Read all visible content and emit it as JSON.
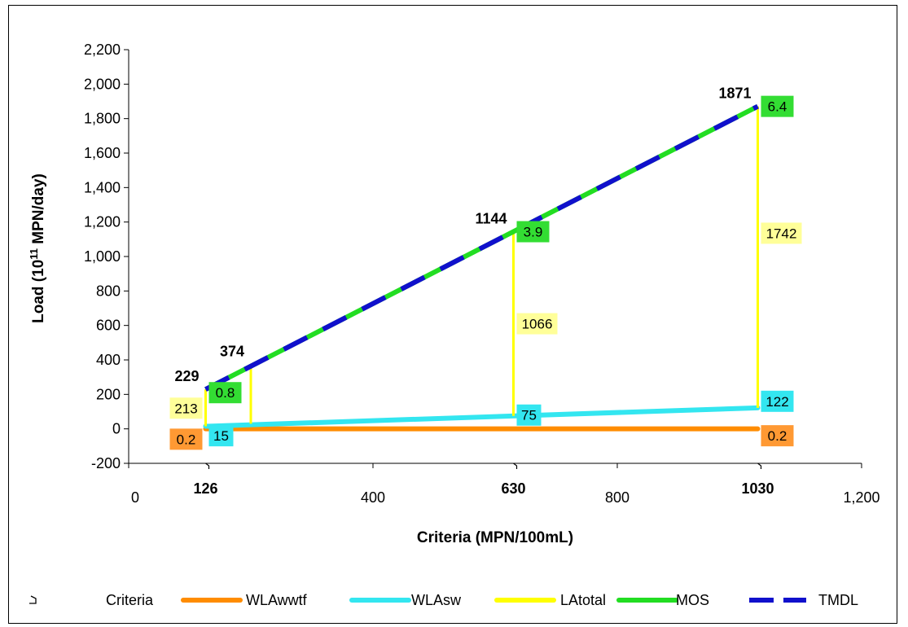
{
  "chart_data": {
    "type": "line",
    "xlabel": "Criteria (MPN/100mL)",
    "ylabel_main": "Load (10",
    "ylabel_sup": "11",
    "ylabel_tail": " MPN/day)",
    "xlim": [
      0,
      1200
    ],
    "ylim": [
      -200,
      2200
    ],
    "x_ticks": [
      "0",
      "400",
      "800",
      "1,200"
    ],
    "y_ticks": [
      "-200",
      "0",
      "200",
      "400",
      "600",
      "800",
      "1,000",
      "1,200",
      "1,400",
      "1,600",
      "1,800",
      "2,000",
      "2,200"
    ],
    "criteria_markers": [
      {
        "x": 126,
        "label": "126"
      },
      {
        "x": 630,
        "label": "630"
      },
      {
        "x": 1030,
        "label": "1030"
      }
    ],
    "series": [
      {
        "name": "WLAwwtf",
        "color": "#FF8C00",
        "x": [
          126,
          1030
        ],
        "y": [
          0.2,
          0.2
        ]
      },
      {
        "name": "WLAsw",
        "color": "#33E6F0",
        "x": [
          126,
          1030
        ],
        "y": [
          15,
          122
        ]
      },
      {
        "name": "MOS",
        "color": "#22DD22",
        "x": [
          126,
          1030
        ],
        "y": [
          229,
          1871
        ]
      },
      {
        "name": "TMDL",
        "color": "#1010CC",
        "x": [
          126,
          1030
        ],
        "y": [
          229,
          1871
        ]
      }
    ],
    "latotal_segments": [
      {
        "x": 126,
        "y0": 15,
        "y1": 229
      },
      {
        "x": 200,
        "y0": 30,
        "y1": 374
      },
      {
        "x": 630,
        "y0": 75,
        "y1": 1144
      },
      {
        "x": 1030,
        "y0": 122,
        "y1": 1871
      }
    ],
    "tmdl_labels": [
      {
        "x": 126,
        "y": 229,
        "text": "229"
      },
      {
        "x": 200,
        "y": 374,
        "text": "374"
      },
      {
        "x": 630,
        "y": 1144,
        "text": "1144"
      },
      {
        "x": 1030,
        "y": 1871,
        "text": "1871"
      }
    ],
    "boxed_labels": [
      {
        "series": "LAtotal",
        "x": 126,
        "y": 120,
        "text": "213",
        "bg": "#FFFF99",
        "side": "left"
      },
      {
        "series": "MOS",
        "x": 126,
        "y": 210,
        "text": "0.8",
        "bg": "#33DD33",
        "side": "right"
      },
      {
        "series": "WLAwwtf",
        "x": 126,
        "y": -60,
        "text": "0.2",
        "bg": "#FF9933",
        "side": "left"
      },
      {
        "series": "WLAsw",
        "x": 126,
        "y": -40,
        "text": "15",
        "bg": "#33E6F0",
        "side": "right"
      },
      {
        "series": "MOS",
        "x": 630,
        "y": 1144,
        "text": "3.9",
        "bg": "#33DD33",
        "side": "right"
      },
      {
        "series": "LAtotal",
        "x": 630,
        "y": 610,
        "text": "1066",
        "bg": "#FFFF99",
        "side": "right"
      },
      {
        "series": "WLAsw",
        "x": 630,
        "y": 80,
        "text": "75",
        "bg": "#33E6F0",
        "side": "right"
      },
      {
        "series": "MOS",
        "x": 1030,
        "y": 1871,
        "text": "6.4",
        "bg": "#33DD33",
        "side": "right"
      },
      {
        "series": "LAtotal",
        "x": 1030,
        "y": 1135,
        "text": "1742",
        "bg": "#FFFF99",
        "side": "right"
      },
      {
        "series": "WLAsw",
        "x": 1030,
        "y": 160,
        "text": "122",
        "bg": "#33E6F0",
        "side": "right"
      },
      {
        "series": "WLAwwtf",
        "x": 1030,
        "y": -40,
        "text": "0.2",
        "bg": "#FF9933",
        "side": "right"
      }
    ],
    "legend": {
      "placement": "bottom",
      "entries": [
        {
          "name": "Criteria",
          "marker": "criteria-tick",
          "color": "#000000"
        },
        {
          "name": "WLAwwtf",
          "marker": "line",
          "color": "#FF8C00"
        },
        {
          "name": "WLAsw",
          "marker": "line",
          "color": "#33E6F0"
        },
        {
          "name": "LAtotal",
          "marker": "line",
          "color": "#FFFF00"
        },
        {
          "name": "MOS",
          "marker": "line",
          "color": "#22DD22"
        },
        {
          "name": "TMDL",
          "marker": "dashed-line",
          "color": "#1010CC"
        }
      ]
    },
    "grid": false
  }
}
